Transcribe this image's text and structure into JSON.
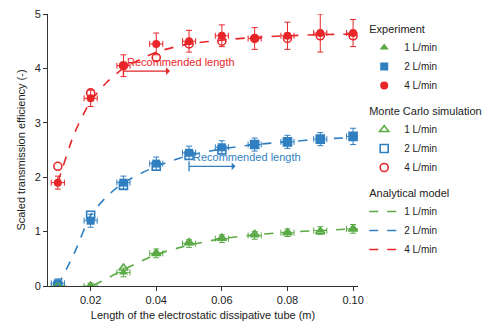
{
  "chart_data": {
    "type": "scatter",
    "x_label": "Length of the electrostatic dissipative tube (m)",
    "y_label": "Scaled transmission efficiency (-)",
    "xlim": [
      0.007,
      0.1015
    ],
    "ylim": [
      0,
      5
    ],
    "xticks": [
      0.02,
      0.04,
      0.06,
      0.08,
      {
        "value": 0.1,
        "label": "0.10"
      }
    ],
    "yticks": [
      0,
      1,
      2,
      3,
      4,
      5
    ],
    "grid": false,
    "legend": "right",
    "series": [
      {
        "group": "Experiment",
        "name": "1 L/min",
        "type": "scatter",
        "marker": "triangle-up",
        "color": "#5aaa46",
        "x": [
          0.01,
          0.02,
          0.03,
          0.04,
          0.05,
          0.06,
          0.07,
          0.08,
          0.09,
          0.1
        ],
        "values": [
          0.0,
          0.0,
          0.25,
          0.6,
          0.78,
          0.87,
          0.93,
          0.98,
          1.02,
          1.05
        ],
        "x_error": [
          0.002,
          0.002,
          0.002,
          0.002,
          0.002,
          0.002,
          0.002,
          0.002,
          0.002,
          0.002
        ],
        "y_error": [
          0.05,
          0.05,
          0.08,
          0.08,
          0.07,
          0.07,
          0.07,
          0.07,
          0.07,
          0.08
        ]
      },
      {
        "group": "Experiment",
        "name": "2 L/min",
        "type": "scatter",
        "marker": "square",
        "color": "#2f7fc1",
        "x": [
          0.01,
          0.02,
          0.03,
          0.04,
          0.05,
          0.06,
          0.07,
          0.08,
          0.09,
          0.1
        ],
        "values": [
          0.05,
          1.2,
          1.9,
          2.25,
          2.45,
          2.55,
          2.6,
          2.65,
          2.7,
          2.75
        ],
        "x_error": [
          0.002,
          0.002,
          0.002,
          0.002,
          0.002,
          0.002,
          0.002,
          0.002,
          0.002,
          0.002
        ],
        "y_error": [
          0.08,
          0.12,
          0.12,
          0.12,
          0.12,
          0.12,
          0.12,
          0.12,
          0.12,
          0.15
        ]
      },
      {
        "group": "Experiment",
        "name": "4 L/min",
        "type": "scatter",
        "marker": "circle",
        "color": "#e8262a",
        "x": [
          0.01,
          0.02,
          0.03,
          0.04,
          0.05,
          0.06,
          0.07,
          0.08,
          0.09,
          0.1
        ],
        "values": [
          1.9,
          3.45,
          4.05,
          4.45,
          4.5,
          4.6,
          4.55,
          4.6,
          4.65,
          4.65
        ],
        "x_error": [
          0.002,
          0.002,
          0.002,
          0.002,
          0.002,
          0.002,
          0.002,
          0.002,
          0.002,
          0.002
        ],
        "y_error": [
          0.12,
          0.15,
          0.2,
          0.2,
          0.2,
          0.2,
          0.2,
          0.25,
          0.35,
          0.25
        ]
      },
      {
        "group": "Monte Carlo simulation",
        "name": "1 L/min",
        "type": "scatter",
        "marker": "triangle-up-open",
        "color": "#5aaa46",
        "x": [
          0.01,
          0.02,
          0.03,
          0.04,
          0.05,
          0.06,
          0.07,
          0.08,
          0.09,
          0.1
        ],
        "values": [
          0.0,
          0.0,
          0.33,
          0.6,
          0.8,
          0.88,
          0.95,
          0.98,
          1.0,
          1.05
        ]
      },
      {
        "group": "Monte Carlo simulation",
        "name": "2 L/min",
        "type": "scatter",
        "marker": "square-open",
        "color": "#2f7fc1",
        "x": [
          0.01,
          0.02,
          0.03,
          0.04,
          0.05,
          0.06,
          0.07,
          0.08,
          0.09,
          0.1
        ],
        "values": [
          0.0,
          1.3,
          1.85,
          2.2,
          2.4,
          2.5,
          2.6,
          2.65,
          2.7,
          2.75
        ]
      },
      {
        "group": "Monte Carlo simulation",
        "name": "4 L/min",
        "type": "scatter",
        "marker": "circle-open",
        "color": "#e8262a",
        "x": [
          0.01,
          0.02,
          0.03,
          0.04,
          0.05,
          0.06,
          0.07,
          0.08,
          0.09,
          0.1
        ],
        "values": [
          2.2,
          3.55,
          4.05,
          4.2,
          4.45,
          4.5,
          4.55,
          4.55,
          4.6,
          4.6
        ]
      },
      {
        "group": "Analytical model",
        "name": "1 L/min",
        "type": "line",
        "line_style": "dash",
        "color": "#5aaa46",
        "x": [
          0.01,
          0.02,
          0.03,
          0.04,
          0.05,
          0.06,
          0.07,
          0.08,
          0.09,
          0.1
        ],
        "values": [
          0.0,
          0.0,
          0.3,
          0.58,
          0.75,
          0.87,
          0.94,
          0.99,
          1.02,
          1.05
        ]
      },
      {
        "group": "Analytical model",
        "name": "2 L/min",
        "type": "line",
        "line_style": "dash",
        "color": "#2f7fc1",
        "x": [
          0.01,
          0.015,
          0.02,
          0.025,
          0.03,
          0.04,
          0.05,
          0.06,
          0.07,
          0.08,
          0.09,
          0.1
        ],
        "values": [
          0.0,
          0.6,
          1.3,
          1.65,
          1.9,
          2.2,
          2.4,
          2.52,
          2.6,
          2.65,
          2.7,
          2.73
        ]
      },
      {
        "group": "Analytical model",
        "name": "4 L/min",
        "type": "line",
        "line_style": "dash",
        "color": "#e8262a",
        "x": [
          0.01,
          0.015,
          0.02,
          0.025,
          0.03,
          0.04,
          0.05,
          0.06,
          0.07,
          0.08,
          0.09,
          0.1
        ],
        "values": [
          1.9,
          2.8,
          3.4,
          3.75,
          4.0,
          4.3,
          4.45,
          4.52,
          4.57,
          4.6,
          4.62,
          4.63
        ]
      }
    ],
    "annotations": [
      {
        "text": "Recommended length",
        "x": 0.03,
        "y": 3.95,
        "color": "#e8262a"
      },
      {
        "text": "Recommended length",
        "x": 0.05,
        "y": 2.2,
        "color": "#2f7fc1"
      }
    ]
  }
}
